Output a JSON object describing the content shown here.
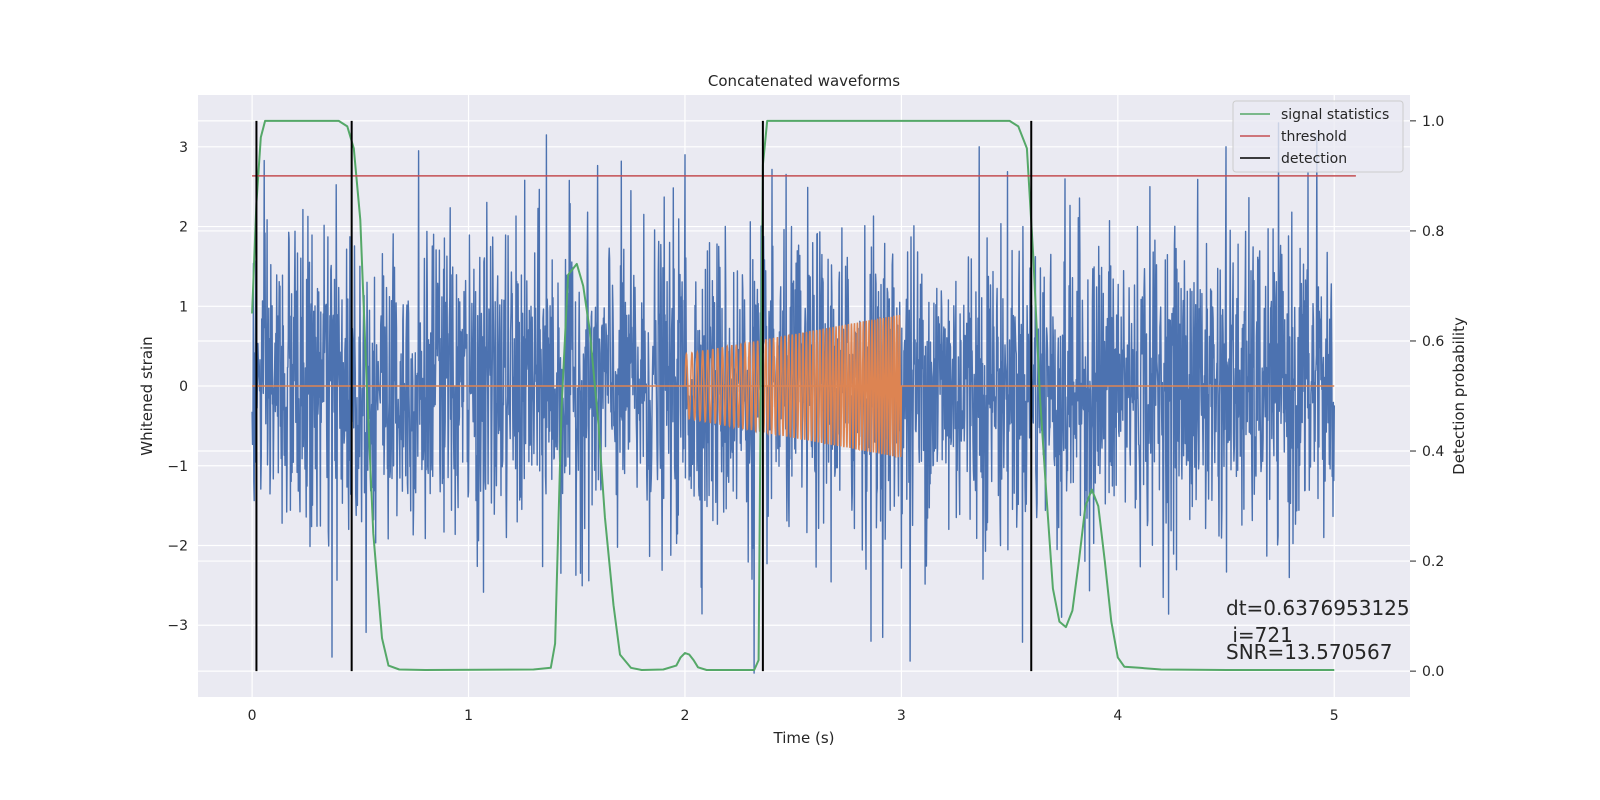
{
  "chart_data": {
    "type": "line",
    "title": "Concatenated waveforms",
    "xlabel": "Time (s)",
    "ylabel": "Whitened strain",
    "y2label": "Detection probability",
    "xlim": [
      -0.25,
      5.35
    ],
    "ylim": [
      -3.9,
      3.65
    ],
    "y2lim": [
      -0.047,
      1.047
    ],
    "xticks": [
      0,
      1,
      2,
      3,
      4,
      5
    ],
    "xtick_labels": [
      "0",
      "1",
      "2",
      "3",
      "4",
      "5"
    ],
    "yticks": [
      -3,
      -2,
      -1,
      0,
      1,
      2,
      3
    ],
    "ytick_labels": [
      "−3",
      "−2",
      "−1",
      "0",
      "1",
      "2",
      "3"
    ],
    "y2ticks": [
      0.0,
      0.2,
      0.4,
      0.6,
      0.8,
      1.0
    ],
    "y2tick_labels": [
      "0.0",
      "0.2",
      "0.4",
      "0.6",
      "0.8",
      "1.0"
    ],
    "grid": true,
    "legend_position": "top-right",
    "colors": {
      "strain": "#4c72b0",
      "injected_signal": "#dd8452",
      "signal_statistics": "#55a868",
      "threshold": "#c44e52",
      "detection": "#000000",
      "axes_background": "#eaeaf2",
      "grid": "#ffffff"
    },
    "series": [
      {
        "name": "whitened strain",
        "axis": "left",
        "x_range": [
          0,
          5
        ],
        "envelope_peaks": [
          {
            "x": 0.35,
            "y": 1.87
          },
          {
            "x": 0.77,
            "y": 2.95
          },
          {
            "x": 1.36,
            "y": 3.15
          },
          {
            "x": 2.0,
            "y": 2.9
          },
          {
            "x": 3.36,
            "y": 3.0
          },
          {
            "x": 4.5,
            "y": 3.0
          },
          {
            "x": 4.92,
            "y": 3.15
          },
          {
            "x": 0.37,
            "y": -3.4
          },
          {
            "x": 2.32,
            "y": -3.6
          },
          {
            "x": 2.86,
            "y": -3.2
          },
          {
            "x": 3.04,
            "y": -3.45
          },
          {
            "x": 3.74,
            "y": -2.9
          }
        ]
      },
      {
        "name": "injected signal",
        "axis": "left",
        "x_range": [
          2.0,
          3.0
        ],
        "amplitude_start": 0.4,
        "amplitude_end": 0.9,
        "zero_baseline": [
          0,
          5
        ]
      },
      {
        "name": "signal statistics",
        "axis": "right",
        "x": [
          0,
          0.02,
          0.04,
          0.06,
          0.08,
          0.12,
          0.3,
          0.4,
          0.44,
          0.47,
          0.5,
          0.53,
          0.56,
          0.6,
          0.63,
          0.68,
          0.8,
          1.3,
          1.38,
          1.4,
          1.43,
          1.46,
          1.5,
          1.53,
          1.56,
          1.6,
          1.63,
          1.67,
          1.7,
          1.75,
          1.8,
          1.9,
          1.96,
          1.98,
          2.0,
          2.02,
          2.04,
          2.06,
          2.1,
          2.2,
          2.32,
          2.34,
          2.35,
          2.36,
          2.38,
          2.42,
          2.6,
          3.0,
          3.5,
          3.54,
          3.58,
          3.61,
          3.64,
          3.67,
          3.7,
          3.73,
          3.76,
          3.79,
          3.82,
          3.85,
          3.88,
          3.91,
          3.94,
          3.97,
          4.0,
          4.03,
          4.1,
          4.2,
          4.5,
          5.0
        ],
        "y": [
          0.65,
          0.85,
          0.97,
          1.0,
          1.0,
          1.0,
          1.0,
          1.0,
          0.99,
          0.95,
          0.82,
          0.52,
          0.25,
          0.06,
          0.01,
          0.003,
          0.002,
          0.003,
          0.006,
          0.05,
          0.48,
          0.72,
          0.74,
          0.7,
          0.62,
          0.45,
          0.28,
          0.12,
          0.03,
          0.006,
          0.002,
          0.003,
          0.01,
          0.025,
          0.033,
          0.03,
          0.02,
          0.007,
          0.002,
          0.002,
          0.002,
          0.02,
          0.5,
          0.92,
          1.0,
          1.0,
          1.0,
          1.0,
          1.0,
          0.99,
          0.95,
          0.75,
          0.5,
          0.32,
          0.15,
          0.09,
          0.08,
          0.11,
          0.2,
          0.3,
          0.33,
          0.3,
          0.2,
          0.09,
          0.025,
          0.008,
          0.006,
          0.003,
          0.002,
          0.002
        ]
      },
      {
        "name": "threshold",
        "axis": "right",
        "x": [
          0,
          5.1
        ],
        "y": [
          0.9,
          0.9
        ]
      },
      {
        "name": "detection",
        "axis": "right",
        "x_positions": [
          0.02,
          0.46,
          2.36,
          3.6
        ],
        "y_range": [
          0.0,
          1.0
        ]
      }
    ],
    "legend": [
      "signal statistics",
      "threshold",
      "detection"
    ],
    "annotations": [
      "dt=0.6376953125",
      " i=721",
      "SNR=13.570567"
    ]
  }
}
